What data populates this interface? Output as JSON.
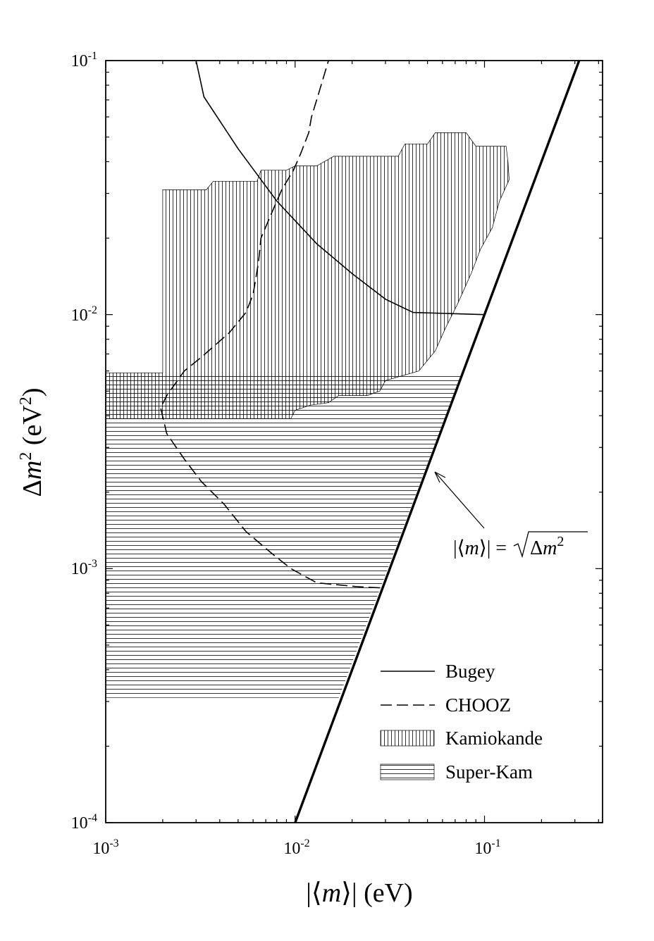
{
  "chart_data": {
    "type": "line",
    "x_scale": "log",
    "y_scale": "log",
    "xlim": [
      0.001,
      0.42
    ],
    "ylim": [
      0.0001,
      0.1
    ],
    "xlabel_parts": {
      "open": "|⟨",
      "var": "m",
      "close": "⟩| (eV)"
    },
    "ylabel_parts": {
      "delta": "Δ",
      "var": "m",
      "sup": "2",
      "unit_open": " (eV",
      "unit_sup": "2",
      "unit_close": ")"
    },
    "x_ticks": [
      {
        "value": 0.001,
        "base": "10",
        "exp": "-3"
      },
      {
        "value": 0.01,
        "base": "10",
        "exp": "-2"
      },
      {
        "value": 0.1,
        "base": "10",
        "exp": "-1"
      }
    ],
    "y_ticks": [
      {
        "value": 0.0001,
        "base": "10",
        "exp": "-4"
      },
      {
        "value": 0.001,
        "base": "10",
        "exp": "-3"
      },
      {
        "value": 0.01,
        "base": "10",
        "exp": "-2"
      },
      {
        "value": 0.1,
        "base": "10",
        "exp": "-1"
      }
    ],
    "series": [
      {
        "name": "Bugey",
        "style": "solid",
        "points": [
          [
            0.003,
            0.1
          ],
          [
            0.0033,
            0.072
          ],
          [
            0.005,
            0.045
          ],
          [
            0.008,
            0.028
          ],
          [
            0.013,
            0.019
          ],
          [
            0.02,
            0.0145
          ],
          [
            0.03,
            0.0115
          ],
          [
            0.042,
            0.0102
          ],
          [
            0.1,
            0.01
          ]
        ]
      },
      {
        "name": "CHOOZ",
        "style": "dashed",
        "points": [
          [
            0.028,
            0.00084
          ],
          [
            0.021,
            0.00085
          ],
          [
            0.013,
            0.00088
          ],
          [
            0.0095,
            0.001
          ],
          [
            0.0075,
            0.00115
          ],
          [
            0.0055,
            0.0014
          ],
          [
            0.0042,
            0.0018
          ],
          [
            0.0032,
            0.0022
          ],
          [
            0.0026,
            0.0027
          ],
          [
            0.0021,
            0.0034
          ],
          [
            0.00195,
            0.0043
          ],
          [
            0.0021,
            0.0048
          ],
          [
            0.0026,
            0.006
          ],
          [
            0.0032,
            0.0068
          ],
          [
            0.0045,
            0.0085
          ],
          [
            0.0055,
            0.0102
          ],
          [
            0.006,
            0.012
          ],
          [
            0.0064,
            0.016
          ],
          [
            0.0066,
            0.02
          ],
          [
            0.0075,
            0.025
          ],
          [
            0.0085,
            0.031
          ],
          [
            0.0098,
            0.037
          ],
          [
            0.0107,
            0.043
          ],
          [
            0.0118,
            0.052
          ],
          [
            0.0122,
            0.06
          ],
          [
            0.0133,
            0.074
          ],
          [
            0.015,
            0.1
          ]
        ]
      },
      {
        "name": "Kamiokande",
        "style": "vertical-hatch",
        "points": [
          [
            0.001,
            0.0031
          ],
          [
            0.001,
            0.0059
          ],
          [
            0.002,
            0.0059
          ],
          [
            0.002,
            0.031
          ],
          [
            0.0034,
            0.031
          ],
          [
            0.0037,
            0.0335
          ],
          [
            0.0063,
            0.0335
          ],
          [
            0.0066,
            0.037
          ],
          [
            0.009,
            0.037
          ],
          [
            0.01,
            0.0385
          ],
          [
            0.013,
            0.0385
          ],
          [
            0.016,
            0.042
          ],
          [
            0.035,
            0.042
          ],
          [
            0.038,
            0.047
          ],
          [
            0.05,
            0.047
          ],
          [
            0.055,
            0.052
          ],
          [
            0.08,
            0.052
          ],
          [
            0.09,
            0.046
          ],
          [
            0.13,
            0.046
          ],
          [
            0.133,
            0.04
          ],
          [
            0.135,
            0.034
          ],
          [
            0.12,
            0.028
          ],
          [
            0.11,
            0.022
          ],
          [
            0.095,
            0.018
          ],
          [
            0.085,
            0.0145
          ],
          [
            0.072,
            0.011
          ],
          [
            0.062,
            0.0088
          ],
          [
            0.055,
            0.0072
          ],
          [
            0.045,
            0.006
          ],
          [
            0.03,
            0.0055
          ],
          [
            0.028,
            0.005
          ],
          [
            0.024,
            0.0048
          ],
          [
            0.017,
            0.0048
          ],
          [
            0.015,
            0.0045
          ],
          [
            0.012,
            0.0044
          ],
          [
            0.01,
            0.0042
          ],
          [
            0.0095,
            0.0039
          ],
          [
            0.001,
            0.0039
          ]
        ]
      },
      {
        "name": "Super-Kam",
        "style": "horizontal-hatch",
        "points": [
          [
            0.001,
            0.00031
          ],
          [
            0.001,
            0.0059
          ],
          [
            0.076,
            0.0059
          ],
          [
            0.017,
            0.00031
          ]
        ]
      },
      {
        "name": "|⟨m⟩| = √Δm²",
        "style": "thick",
        "points": [
          [
            0.01,
            0.0001
          ],
          [
            0.316,
            0.1
          ]
        ]
      }
    ],
    "legend": {
      "position": "bottom-right",
      "items": [
        {
          "label": "Bugey",
          "style": "solid"
        },
        {
          "label": "CHOOZ",
          "style": "dashed"
        },
        {
          "label": "Kamiokande",
          "style": "vertical-hatch"
        },
        {
          "label": "Super-Kam",
          "style": "horizontal-hatch"
        }
      ]
    },
    "annotation": {
      "text_parts": {
        "open": "|⟨",
        "var": "m",
        "close": "⟩| = ",
        "delta": "Δ",
        "var2": "m",
        "sup": "2"
      },
      "target": [
        0.052,
        0.0027
      ],
      "label_at": [
        0.23,
        0.0011
      ]
    }
  }
}
